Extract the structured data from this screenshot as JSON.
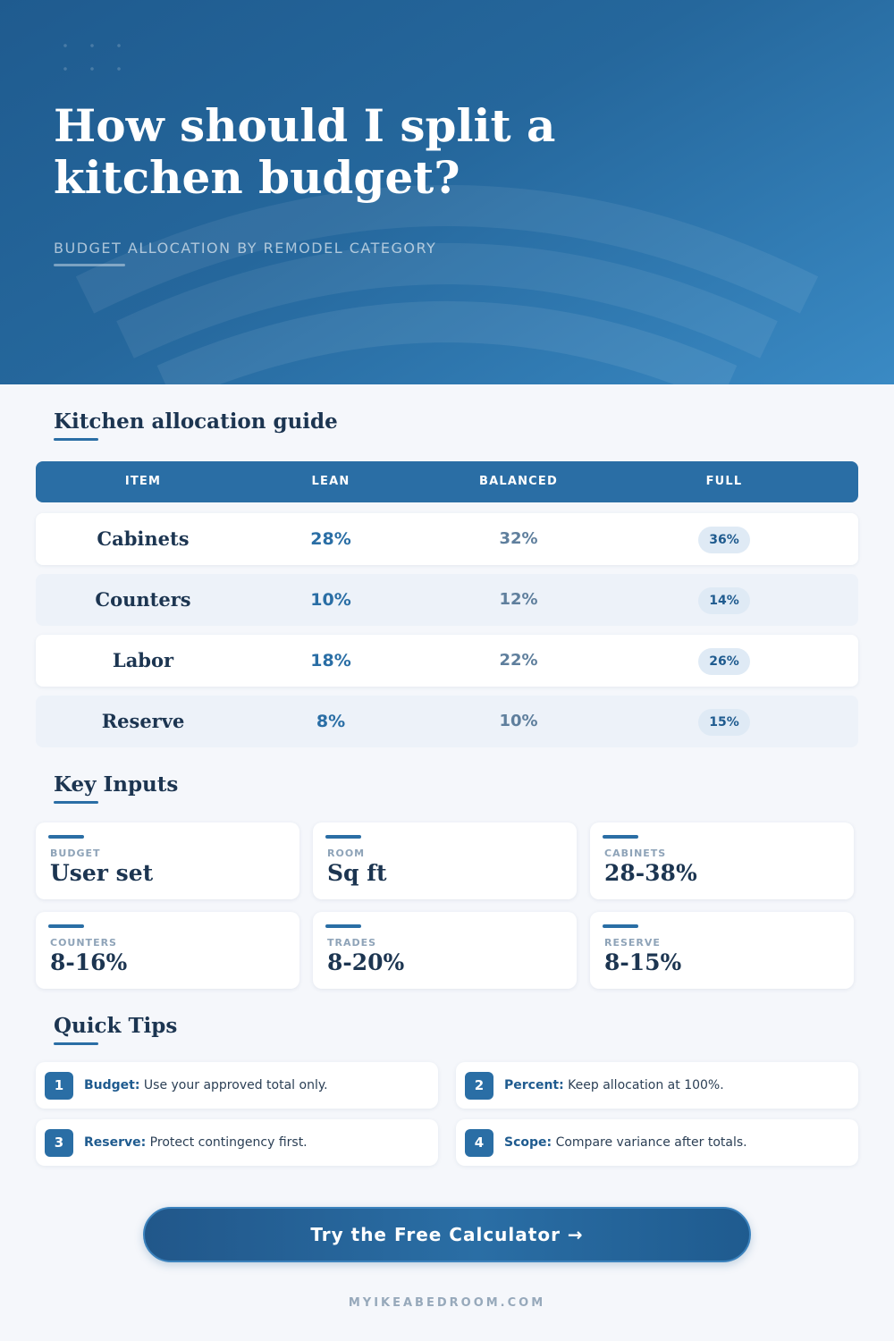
{
  "hero": {
    "title": "How should I split a kitchen budget?",
    "subtitle": "BUDGET ALLOCATION BY REMODEL CATEGORY"
  },
  "allocation": {
    "heading": "Kitchen allocation guide",
    "columns": [
      "ITEM",
      "LEAN",
      "BALANCED",
      "FULL"
    ],
    "rows": [
      {
        "item": "Cabinets",
        "lean": "28%",
        "balanced": "32%",
        "full": "36%"
      },
      {
        "item": "Counters",
        "lean": "10%",
        "balanced": "12%",
        "full": "14%"
      },
      {
        "item": "Labor",
        "lean": "18%",
        "balanced": "22%",
        "full": "26%"
      },
      {
        "item": "Reserve",
        "lean": "8%",
        "balanced": "10%",
        "full": "15%"
      }
    ]
  },
  "inputs": {
    "heading": "Key Inputs",
    "cards": [
      {
        "label": "BUDGET",
        "value": "User set"
      },
      {
        "label": "ROOM",
        "value": "Sq ft"
      },
      {
        "label": "CABINETS",
        "value": "28-38%"
      },
      {
        "label": "COUNTERS",
        "value": "8-16%"
      },
      {
        "label": "TRADES",
        "value": "8-20%"
      },
      {
        "label": "RESERVE",
        "value": "8-15%"
      }
    ]
  },
  "tips": {
    "heading": "Quick Tips",
    "items": [
      {
        "num": "1",
        "key": "Budget:",
        "text": " Use your approved total only."
      },
      {
        "num": "2",
        "key": "Percent:",
        "text": " Keep allocation at 100%."
      },
      {
        "num": "3",
        "key": "Reserve:",
        "text": " Protect contingency first."
      },
      {
        "num": "4",
        "key": "Scope:",
        "text": " Compare variance after totals."
      }
    ]
  },
  "cta": {
    "label": "Try the Free Calculator →"
  },
  "footer": {
    "site": "MYIKEABEDROOM.COM"
  },
  "colors": {
    "primary": "#2a6ea5",
    "dark": "#1c3551",
    "hero_start": "#1f5b8f",
    "hero_end": "#3a8ac4"
  }
}
